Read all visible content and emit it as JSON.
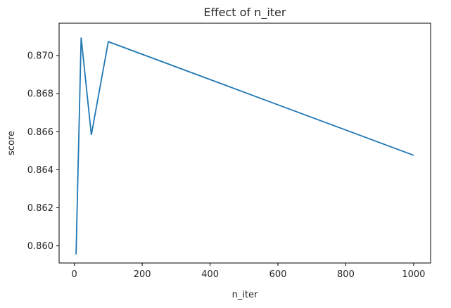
{
  "chart_data": {
    "type": "line",
    "title": "Effect of n_iter",
    "xlabel": "n_iter",
    "ylabel": "score",
    "xlim": [
      -45,
      1050
    ],
    "ylim": [
      0.8591,
      0.8717
    ],
    "xticks": [
      0,
      200,
      400,
      600,
      800,
      1000
    ],
    "xtick_labels": [
      "0",
      "200",
      "400",
      "600",
      "800",
      "1000"
    ],
    "yticks": [
      0.86,
      0.862,
      0.864,
      0.866,
      0.868,
      0.87
    ],
    "ytick_labels": [
      "0.860",
      "0.862",
      "0.864",
      "0.866",
      "0.868",
      "0.870"
    ],
    "grid": false,
    "series": [
      {
        "color": "#1f77b4",
        "x": [
          5,
          20,
          50,
          100,
          1000
        ],
        "y": [
          0.85955,
          0.87095,
          0.86583,
          0.87073,
          0.86476
        ]
      }
    ]
  }
}
